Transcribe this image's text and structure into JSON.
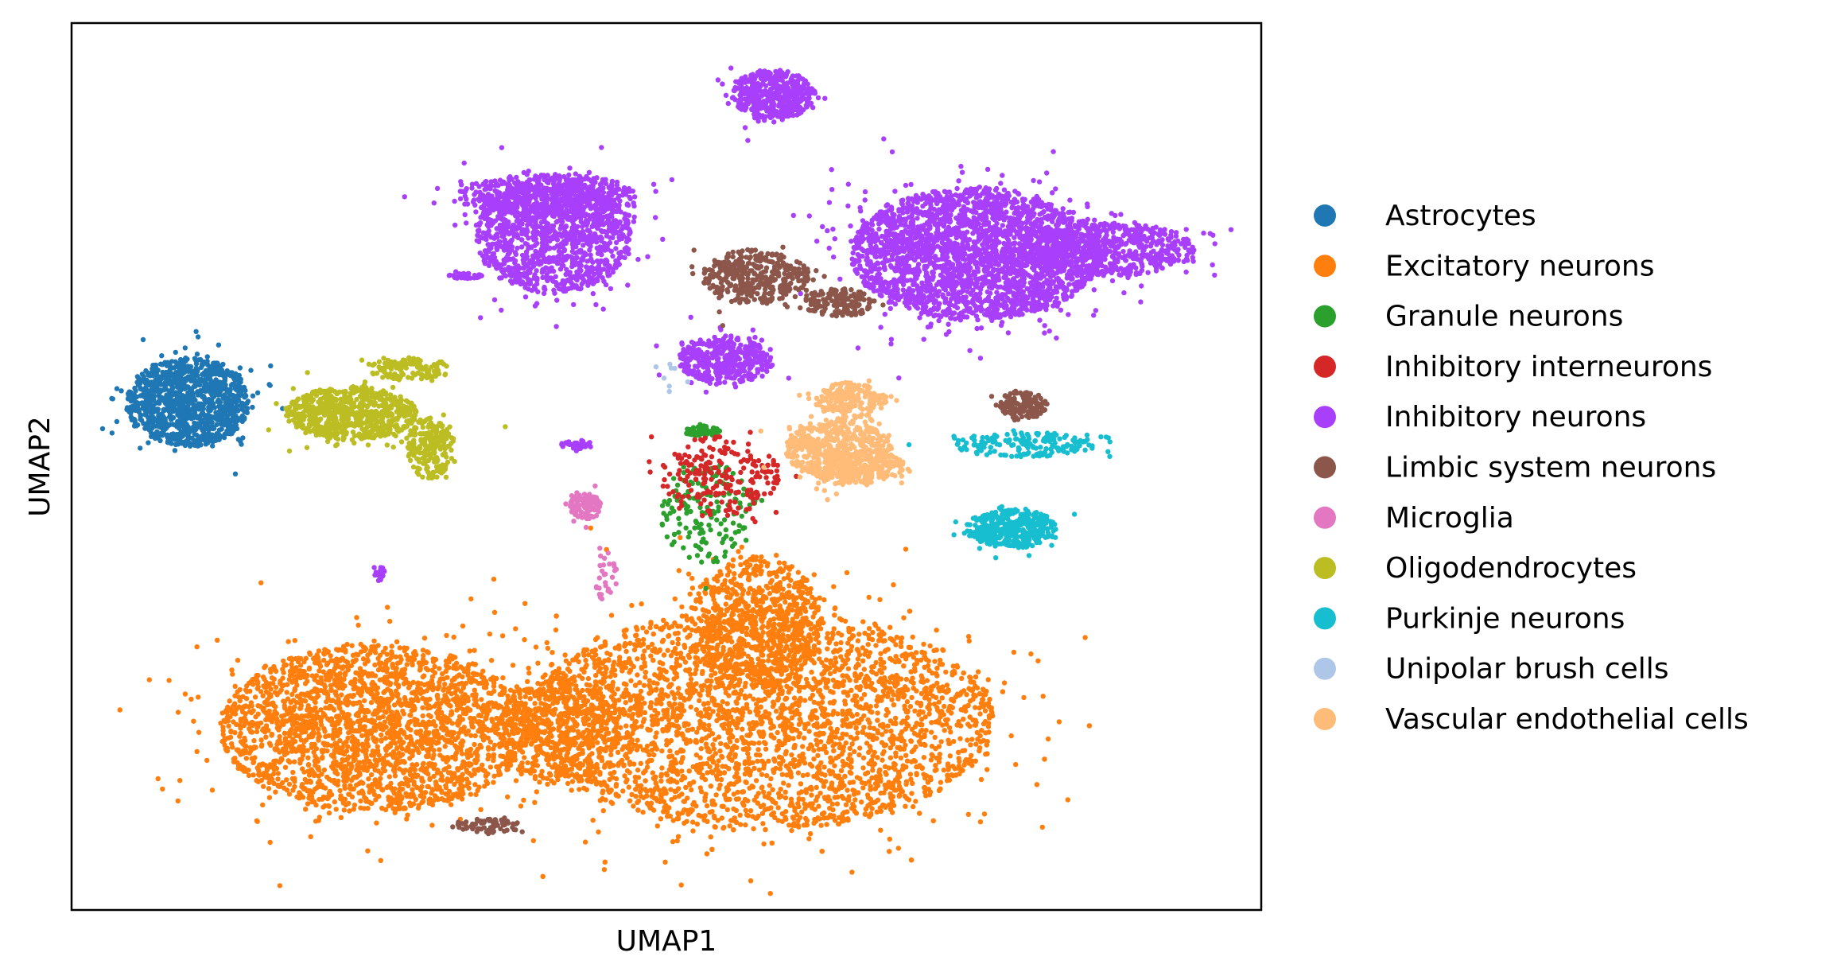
{
  "chart_data": {
    "type": "scatter",
    "title": "",
    "xlabel": "UMAP1",
    "ylabel": "UMAP2",
    "xlim": [
      0,
      100
    ],
    "ylim": [
      0,
      100
    ],
    "grid": false,
    "ticks": false,
    "legend_placement": "right, outside plot",
    "series": [
      {
        "name": "Astrocytes",
        "color": "#1f77b4",
        "clusters": [
          {
            "cx": 9.8,
            "cy": 57.3,
            "rx": 5.2,
            "ry": 5.0,
            "n": 1100
          }
        ]
      },
      {
        "name": "Excitatory neurons",
        "color": "#ff7f0e",
        "clusters": [
          {
            "cx": 25.5,
            "cy": 20.5,
            "rx": 13.0,
            "ry": 9.5,
            "n": 2400
          },
          {
            "cx": 58.0,
            "cy": 21.5,
            "rx": 19.5,
            "ry": 12.5,
            "n": 3600
          },
          {
            "cx": 57.5,
            "cy": 32.5,
            "rx": 5.5,
            "ry": 7.5,
            "n": 700
          },
          {
            "cx": 41.0,
            "cy": 20.5,
            "rx": 5.0,
            "ry": 6.5,
            "n": 500
          }
        ]
      },
      {
        "name": "Granule neurons",
        "color": "#2ca02c",
        "clusters": [
          {
            "cx": 53.0,
            "cy": 54.0,
            "rx": 1.5,
            "ry": 0.6,
            "n": 80
          },
          {
            "cx": 53.5,
            "cy": 45.0,
            "rx": 4.0,
            "ry": 6.0,
            "n": 160
          }
        ]
      },
      {
        "name": "Inhibitory interneurons",
        "color": "#d62728",
        "clusters": [
          {
            "cx": 54.5,
            "cy": 49.0,
            "rx": 5.0,
            "ry": 4.5,
            "n": 220
          }
        ]
      },
      {
        "name": "Inhibitory neurons",
        "color": "#a83ffb",
        "clusters": [
          {
            "cx": 59.0,
            "cy": 92.0,
            "rx": 3.5,
            "ry": 2.8,
            "n": 450
          },
          {
            "cx": 40.5,
            "cy": 76.0,
            "rx": 6.5,
            "ry": 6.5,
            "n": 1200
          },
          {
            "cx": 40.0,
            "cy": 80.5,
            "rx": 7.5,
            "ry": 2.5,
            "n": 500
          },
          {
            "cx": 76.0,
            "cy": 74.0,
            "rx": 10.5,
            "ry": 7.5,
            "n": 2600
          },
          {
            "cx": 87.0,
            "cy": 74.5,
            "rx": 7.5,
            "ry": 3.0,
            "n": 600
          },
          {
            "cx": 55.0,
            "cy": 62.0,
            "rx": 4.0,
            "ry": 2.8,
            "n": 400
          },
          {
            "cx": 33.0,
            "cy": 71.5,
            "rx": 1.5,
            "ry": 0.3,
            "n": 40
          },
          {
            "cx": 42.5,
            "cy": 52.5,
            "rx": 1.4,
            "ry": 0.5,
            "n": 40
          },
          {
            "cx": 25.8,
            "cy": 38.0,
            "rx": 0.5,
            "ry": 1.0,
            "n": 20
          }
        ]
      },
      {
        "name": "Limbic system neurons",
        "color": "#8c564b",
        "clusters": [
          {
            "cx": 57.5,
            "cy": 71.5,
            "rx": 4.5,
            "ry": 3.0,
            "n": 400
          },
          {
            "cx": 64.5,
            "cy": 68.5,
            "rx": 3.0,
            "ry": 1.6,
            "n": 160
          },
          {
            "cx": 80.0,
            "cy": 57.0,
            "rx": 2.0,
            "ry": 1.6,
            "n": 150
          },
          {
            "cx": 35.0,
            "cy": 9.5,
            "rx": 3.0,
            "ry": 0.8,
            "n": 70
          }
        ]
      },
      {
        "name": "Microglia",
        "color": "#e377c2",
        "clusters": [
          {
            "cx": 43.2,
            "cy": 45.5,
            "rx": 1.3,
            "ry": 1.5,
            "n": 120
          },
          {
            "cx": 45.0,
            "cy": 38.0,
            "rx": 1.0,
            "ry": 3.5,
            "n": 30
          }
        ]
      },
      {
        "name": "Oligodendrocytes",
        "color": "#bcbd22",
        "clusters": [
          {
            "cx": 23.5,
            "cy": 56.0,
            "rx": 5.5,
            "ry": 3.0,
            "n": 700
          },
          {
            "cx": 30.0,
            "cy": 52.0,
            "rx": 2.0,
            "ry": 3.5,
            "n": 200
          },
          {
            "cx": 28.5,
            "cy": 61.0,
            "rx": 3.5,
            "ry": 1.3,
            "n": 120
          }
        ]
      },
      {
        "name": "Purkinje neurons",
        "color": "#17becf",
        "clusters": [
          {
            "cx": 79.0,
            "cy": 43.0,
            "rx": 3.8,
            "ry": 2.2,
            "n": 380
          },
          {
            "cx": 80.0,
            "cy": 52.5,
            "rx": 6.0,
            "ry": 1.4,
            "n": 180
          }
        ]
      },
      {
        "name": "Unipolar brush cells",
        "color": "#aec7e8",
        "clusters": [
          {
            "cx": 50.0,
            "cy": 60.0,
            "rx": 2.0,
            "ry": 2.0,
            "n": 8
          }
        ]
      },
      {
        "name": "Vascular endothelial cells",
        "color": "#ffbb78",
        "clusters": [
          {
            "cx": 64.5,
            "cy": 52.0,
            "rx": 4.5,
            "ry": 3.5,
            "n": 550
          },
          {
            "cx": 65.5,
            "cy": 57.5,
            "rx": 3.0,
            "ry": 2.0,
            "n": 200
          },
          {
            "cx": 66.0,
            "cy": 50.0,
            "rx": 4.0,
            "ry": 2.0,
            "n": 200
          }
        ]
      }
    ]
  }
}
